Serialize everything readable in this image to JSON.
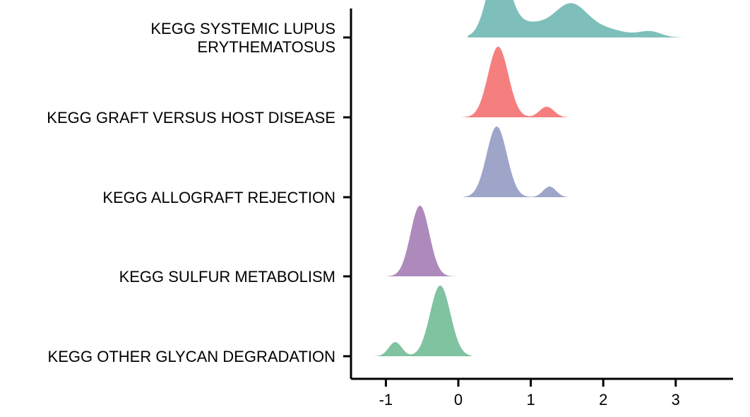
{
  "chart_data": {
    "type": "ridgeline",
    "title": "",
    "xlabel": "",
    "ylabel": "",
    "xlim": [
      -1.5,
      3.75
    ],
    "x_ticks": [
      {
        "value": -1,
        "label": "-1"
      },
      {
        "value": 0,
        "label": "0"
      },
      {
        "value": 1,
        "label": "1"
      },
      {
        "value": 2,
        "label": "2"
      },
      {
        "value": 3,
        "label": "3"
      }
    ],
    "categories": [
      {
        "lines": [
          "KEGG SYSTEMIC LUPUS",
          "ERYTHEMATOSUS"
        ]
      },
      {
        "lines": [
          "KEGG GRAFT VERSUS HOST DISEASE"
        ]
      },
      {
        "lines": [
          "KEGG ALLOGRAFT REJECTION"
        ]
      },
      {
        "lines": [
          "KEGG SULFUR METABOLISM"
        ]
      },
      {
        "lines": [
          "KEGG OTHER GLYCAN DEGRADATION"
        ]
      }
    ],
    "series": [
      {
        "color": "#7fbfbb",
        "range": [
          0.13,
          3.36
        ],
        "components": [
          {
            "mu": 0.55,
            "sd": 0.15,
            "h": 0.97
          },
          {
            "mu": 0.95,
            "sd": 0.3,
            "h": 0.2
          },
          {
            "mu": 1.55,
            "sd": 0.22,
            "h": 0.42
          },
          {
            "mu": 2.0,
            "sd": 0.3,
            "h": 0.12
          },
          {
            "mu": 2.65,
            "sd": 0.15,
            "h": 0.08
          }
        ]
      },
      {
        "color": "#f57f7f",
        "range": [
          0.05,
          1.55
        ],
        "components": [
          {
            "mu": 0.55,
            "sd": 0.14,
            "h": 1.0
          },
          {
            "mu": 1.22,
            "sd": 0.1,
            "h": 0.15
          }
        ]
      },
      {
        "color": "#9ea5c8",
        "range": [
          0.07,
          1.52
        ],
        "components": [
          {
            "mu": 0.53,
            "sd": 0.14,
            "h": 1.0
          },
          {
            "mu": 1.26,
            "sd": 0.09,
            "h": 0.15
          }
        ]
      },
      {
        "color": "#ae89bb",
        "range": [
          -1.01,
          0.0
        ],
        "components": [
          {
            "mu": -0.53,
            "sd": 0.13,
            "h": 1.0
          }
        ]
      },
      {
        "color": "#80c3a1",
        "range": [
          -1.17,
          0.18
        ],
        "components": [
          {
            "mu": -0.25,
            "sd": 0.14,
            "h": 1.0
          },
          {
            "mu": -0.87,
            "sd": 0.09,
            "h": 0.2
          }
        ]
      }
    ]
  }
}
